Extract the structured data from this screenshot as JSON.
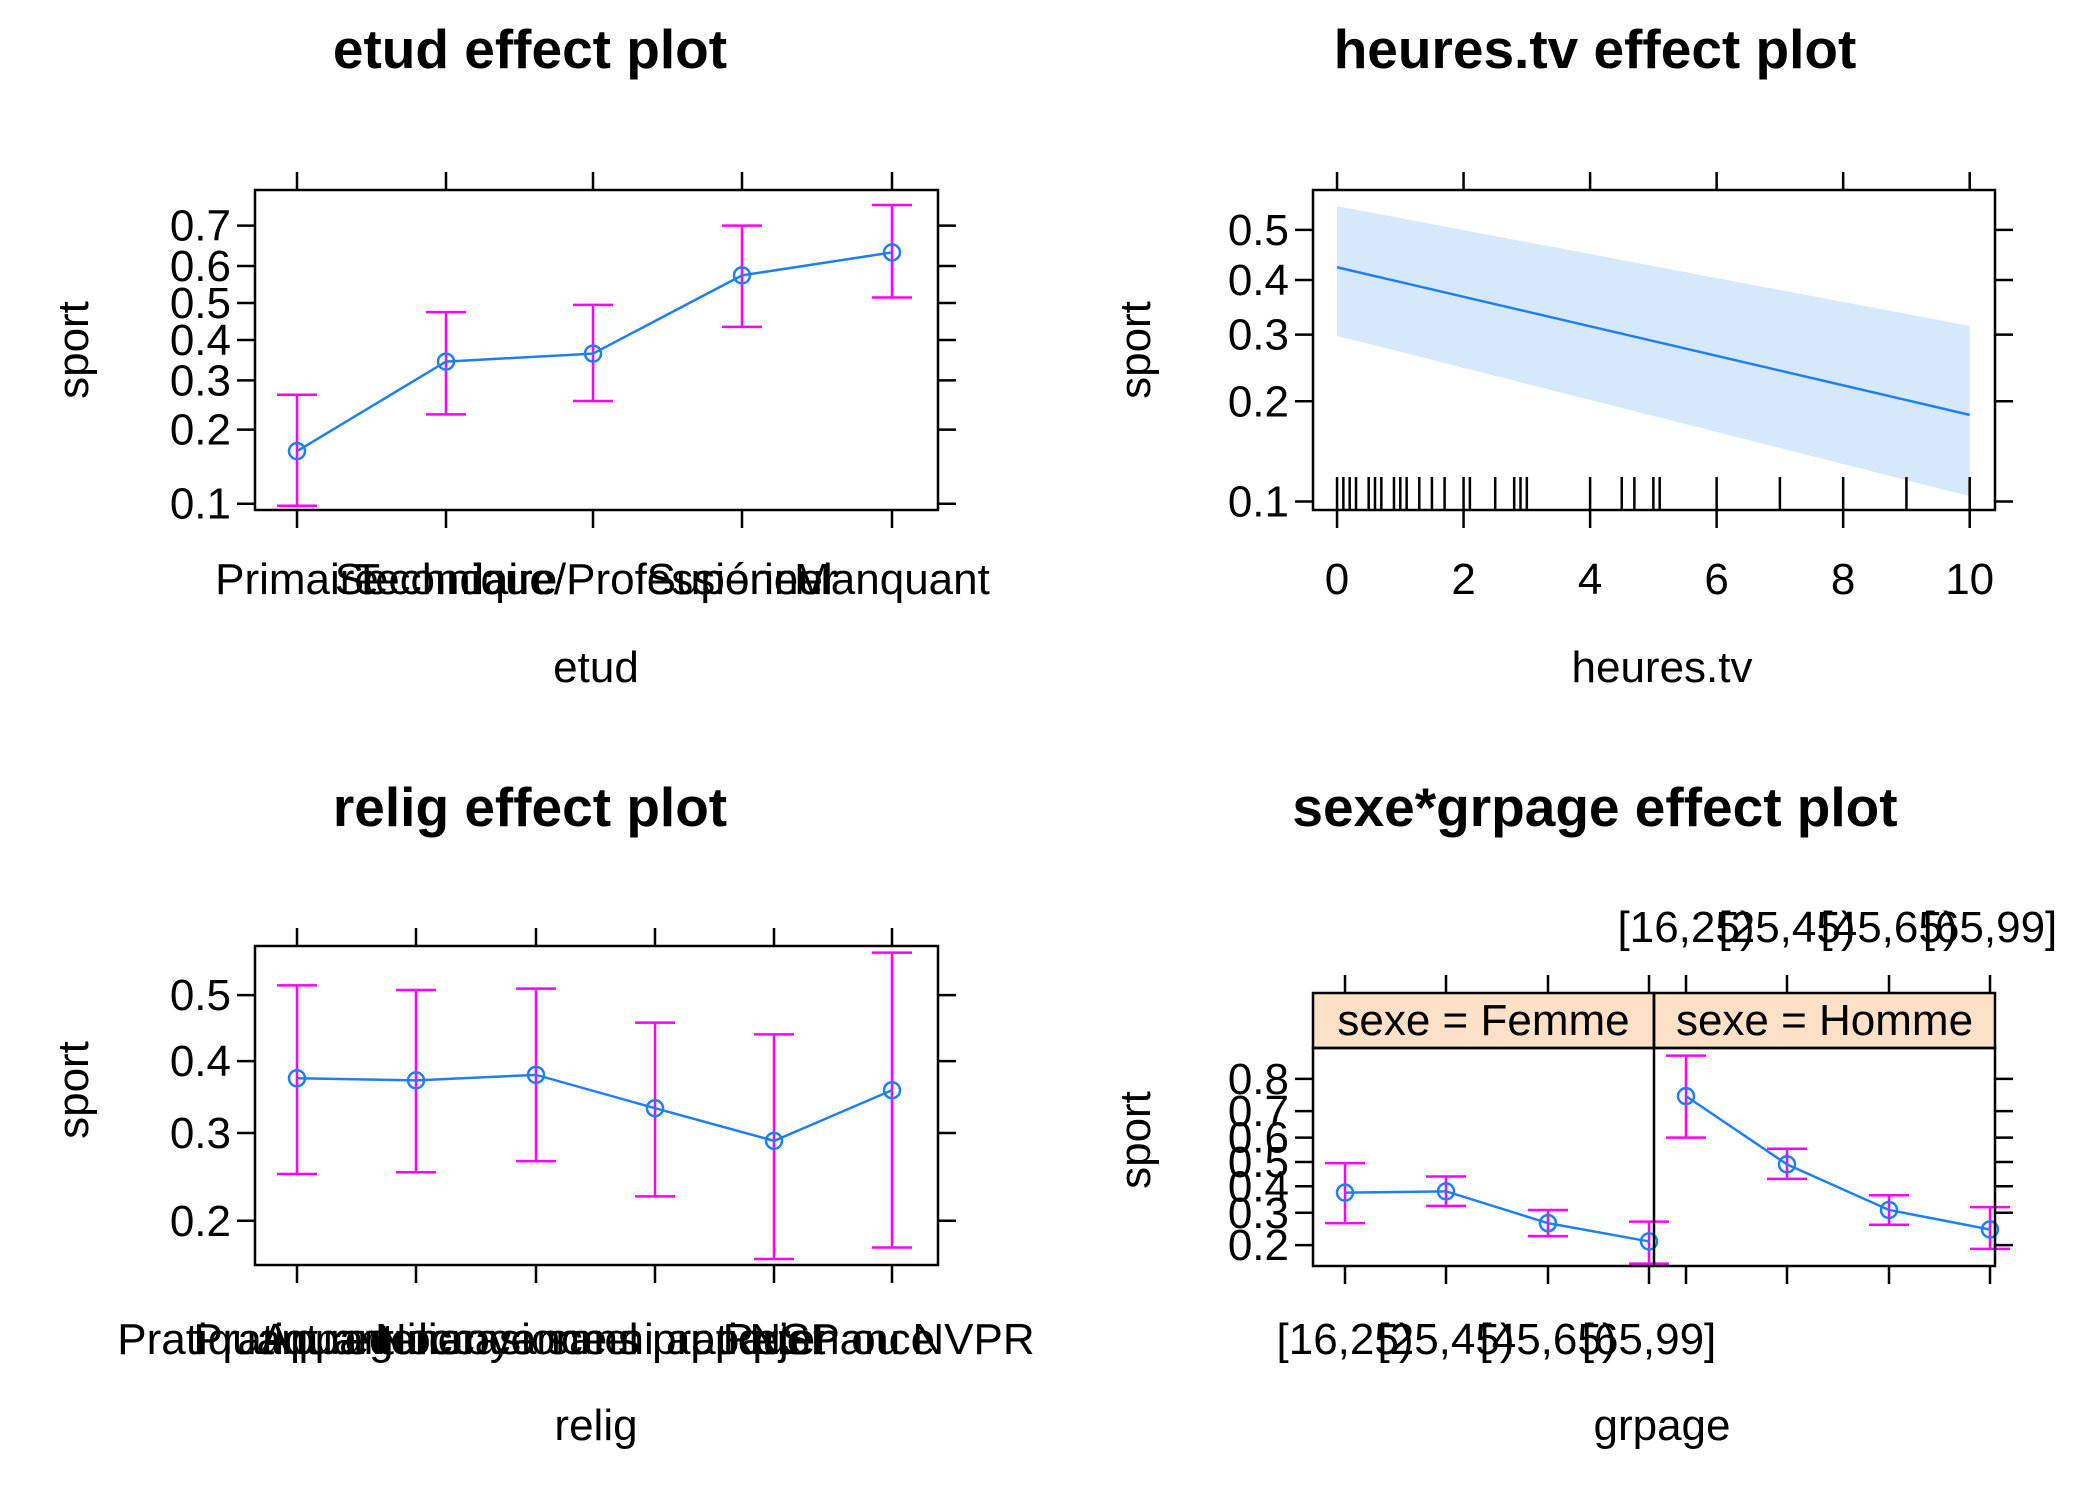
{
  "colors": {
    "line": "#1f7fef",
    "errorbar": "#ff00ff",
    "band": "#d6e8fb",
    "strip": "#fde0c8",
    "axis": "#000000"
  },
  "chart_data": [
    {
      "id": "etud",
      "type": "line",
      "title": "etud effect plot",
      "xlabel": "etud",
      "ylabel": "sport",
      "yscale": "logit",
      "categories": [
        "Primaire",
        "Secondaire",
        "Technique/Professionnel",
        "Supérieur",
        "Manquant"
      ],
      "values": [
        0.165,
        0.345,
        0.365,
        0.575,
        0.635
      ],
      "lower": [
        0.098,
        0.228,
        0.255,
        0.435,
        0.515
      ],
      "upper": [
        0.268,
        0.475,
        0.495,
        0.7,
        0.745
      ],
      "yticks": [
        0.1,
        0.2,
        0.3,
        0.4,
        0.5,
        0.6,
        0.7
      ],
      "ytick_labels": [
        "0.1",
        "0.2",
        "0.3",
        "0.4",
        "0.5",
        "0.6",
        "0.7"
      ],
      "ylim": [
        0.094,
        0.775
      ]
    },
    {
      "id": "heures",
      "type": "line",
      "title": "heures.tv effect plot",
      "xlabel": "heures.tv",
      "ylabel": "sport",
      "yscale": "logit",
      "x": [
        0,
        10
      ],
      "values": [
        0.425,
        0.183
      ],
      "band_lower": [
        0.298,
        0.104
      ],
      "band_upper": [
        0.548,
        0.315
      ],
      "xticks": [
        0,
        2,
        4,
        6,
        8,
        10
      ],
      "xtick_labels": [
        "0",
        "2",
        "4",
        "6",
        "8",
        "10"
      ],
      "yticks": [
        0.1,
        0.2,
        0.3,
        0.4,
        0.5
      ],
      "ytick_labels": [
        "0.1",
        "0.2",
        "0.3",
        "0.4",
        "0.5"
      ],
      "xlim": [
        -0.38,
        10.4
      ],
      "ylim": [
        0.094,
        0.58
      ],
      "rug": [
        0,
        0.1,
        0.2,
        0.3,
        0.5,
        0.6,
        0.7,
        0.9,
        1.0,
        1.1,
        1.3,
        1.5,
        1.7,
        2.0,
        2.1,
        2.5,
        2.8,
        2.9,
        3.0,
        4.0,
        4.5,
        4.7,
        5.0,
        5.1,
        6.0,
        7.0,
        8.0,
        9.0,
        10.0
      ]
    },
    {
      "id": "relig",
      "type": "line",
      "title": "relig effect plot",
      "xlabel": "relig",
      "ylabel": "sport",
      "yscale": "logit",
      "categories": [
        "Pratiquant regulier",
        "Pratiquant occasionnel",
        "Appartenance sans pratique",
        "Ni croyance ni appartenance",
        "Rejet",
        "NSP ou NVPR"
      ],
      "values": [
        0.375,
        0.372,
        0.38,
        0.333,
        0.29,
        0.358
      ],
      "lower": [
        0.25,
        0.252,
        0.265,
        0.225,
        0.165,
        0.175
      ],
      "upper": [
        0.515,
        0.508,
        0.51,
        0.458,
        0.44,
        0.565
      ],
      "yticks": [
        0.2,
        0.3,
        0.4,
        0.5
      ],
      "ytick_labels": [
        "0.2",
        "0.3",
        "0.4",
        "0.5"
      ],
      "ylim": [
        0.16,
        0.575
      ]
    },
    {
      "id": "sexegrp",
      "type": "line",
      "title": "sexe*grpage effect plot",
      "xlabel": "grpage",
      "ylabel": "sport",
      "yscale": "logit",
      "categories": [
        "[16,25)",
        "[25,45)",
        "[45,65)",
        "[65,99]"
      ],
      "panels": [
        {
          "strip": "sexe = Femme",
          "values": [
            0.375,
            0.38,
            0.265,
            0.21
          ],
          "lower": [
            0.265,
            0.325,
            0.225,
            0.155
          ],
          "upper": [
            0.495,
            0.44,
            0.31,
            0.27
          ]
        },
        {
          "strip": "sexe = Homme",
          "values": [
            0.75,
            0.49,
            0.31,
            0.245
          ],
          "lower": [
            0.6,
            0.43,
            0.26,
            0.19
          ],
          "upper": [
            0.855,
            0.555,
            0.365,
            0.32
          ]
        }
      ],
      "yticks": [
        0.2,
        0.3,
        0.4,
        0.5,
        0.6,
        0.7,
        0.8
      ],
      "ytick_labels": [
        "0.2",
        "0.3",
        "0.4",
        "0.5",
        "0.6",
        "0.7",
        "0.8"
      ],
      "ylim": [
        0.15,
        0.87
      ]
    }
  ]
}
